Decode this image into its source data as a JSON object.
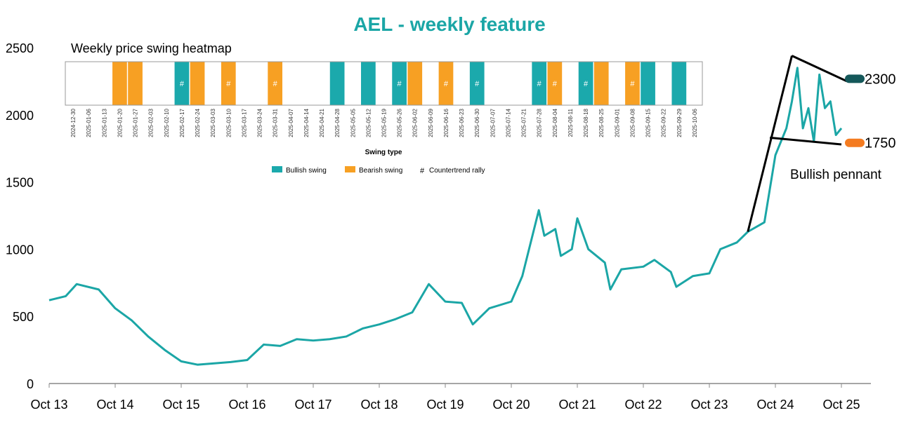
{
  "chart_data": [
    {
      "type": "line",
      "title": "AEL - weekly feature",
      "xlabel": "",
      "ylabel": "",
      "ylim": [
        0,
        2500
      ],
      "yticks": [
        0,
        500,
        1000,
        1500,
        2000,
        2500
      ],
      "xticks": [
        "Oct 13",
        "Oct 14",
        "Oct 15",
        "Oct 16",
        "Oct 17",
        "Oct 18",
        "Oct 19",
        "Oct 20",
        "Oct 21",
        "Oct 22",
        "Oct 23",
        "Oct 24",
        "Oct 25"
      ],
      "grid": false,
      "line_color": "#1ba6a6",
      "series": [
        {
          "x": [
            "2013-10",
            "2014-01",
            "2014-03",
            "2014-07",
            "2014-10",
            "2015-01",
            "2015-04",
            "2015-07",
            "2015-10",
            "2016-01",
            "2016-04",
            "2016-07",
            "2016-10",
            "2017-01",
            "2017-04",
            "2017-07",
            "2017-10",
            "2018-01",
            "2018-04",
            "2018-07",
            "2018-10",
            "2019-01",
            "2019-04",
            "2019-07",
            "2019-10",
            "2020-01",
            "2020-03",
            "2020-06",
            "2020-10",
            "2020-12",
            "2021-03",
            "2021-04",
            "2021-06",
            "2021-07",
            "2021-09",
            "2021-10",
            "2021-12",
            "2022-03",
            "2022-04",
            "2022-06",
            "2022-10",
            "2022-12",
            "2023-03",
            "2023-04",
            "2023-07",
            "2023-10",
            "2023-12",
            "2024-03",
            "2024-05",
            "2024-08",
            "2024-10",
            "2024-12",
            "2025-01",
            "2025-02",
            "2025-03",
            "2025-04",
            "2025-05",
            "2025-06",
            "2025-07",
            "2025-08",
            "2025-09",
            "2025-10"
          ],
          "values": [
            620,
            650,
            740,
            700,
            560,
            470,
            350,
            250,
            165,
            140,
            150,
            160,
            175,
            290,
            280,
            330,
            320,
            330,
            350,
            410,
            440,
            480,
            530,
            740,
            610,
            600,
            440,
            560,
            610,
            800,
            1290,
            1100,
            1150,
            950,
            1000,
            1230,
            1000,
            900,
            700,
            850,
            870,
            920,
            830,
            720,
            800,
            820,
            1000,
            1050,
            1130,
            1200,
            1700,
            1900,
            2100,
            2350,
            1900,
            2050,
            1800,
            2300,
            2050,
            2100,
            1850,
            1900
          ]
        }
      ],
      "annotations": {
        "pattern_label": "Bullish pennant",
        "lines": [
          {
            "from": [
              "2024-05",
              1130
            ],
            "to": [
              "2025-01",
              2440
            ]
          },
          {
            "from": [
              "2025-01",
              2440
            ],
            "to": [
              "2025-11",
              2250
            ]
          },
          {
            "from": [
              "2024-09",
              1830
            ],
            "to": [
              "2025-10",
              1780
            ]
          }
        ],
        "levels": [
          {
            "label": "2300",
            "value": 2300,
            "color": "#14585a"
          },
          {
            "label": "1750",
            "value": 1750,
            "color": "#f47b20"
          }
        ]
      }
    },
    {
      "type": "heatmap",
      "title": "Weekly price swing heatmap",
      "xlabel": "Swing type",
      "legend": [
        {
          "label": "Bullish swing",
          "color": "#1ba9ac"
        },
        {
          "label": "Bearish swing",
          "color": "#f7a023"
        },
        {
          "label": "Countertrend rally",
          "symbol": "#"
        }
      ],
      "weeks": [
        "2024-12-30",
        "2025-01-06",
        "2025-01-13",
        "2025-01-20",
        "2025-01-27",
        "2025-02-03",
        "2025-02-10",
        "2025-02-17",
        "2025-02-24",
        "2025-03-03",
        "2025-03-10",
        "2025-03-17",
        "2025-03-24",
        "2025-03-31",
        "2025-04-07",
        "2025-04-14",
        "2025-04-21",
        "2025-04-28",
        "2025-05-05",
        "2025-05-12",
        "2025-05-19",
        "2025-05-26",
        "2025-06-02",
        "2025-06-09",
        "2025-06-16",
        "2025-06-23",
        "2025-06-30",
        "2025-07-07",
        "2025-07-14",
        "2025-07-21",
        "2025-07-28",
        "2025-08-04",
        "2025-08-11",
        "2025-08-18",
        "2025-08-25",
        "2025-09-01",
        "2025-09-08",
        "2025-09-15",
        "2025-09-22",
        "2025-09-29",
        "2025-10-06"
      ],
      "swing": [
        "",
        "",
        "",
        "bear",
        "bear",
        "",
        "",
        "bull",
        "bear",
        "",
        "bear",
        "",
        "",
        "bear",
        "",
        "",
        "",
        "bull",
        "",
        "bull",
        "",
        "bull",
        "bear",
        "",
        "bear",
        "",
        "bull",
        "",
        "",
        "",
        "bull",
        "bear",
        "",
        "bull",
        "bear",
        "",
        "bear",
        "bull",
        "",
        "bull",
        ""
      ],
      "countertrend": [
        false,
        false,
        false,
        false,
        false,
        false,
        false,
        true,
        false,
        false,
        true,
        false,
        false,
        true,
        false,
        false,
        false,
        false,
        false,
        false,
        false,
        true,
        false,
        false,
        true,
        false,
        true,
        false,
        false,
        false,
        true,
        true,
        false,
        true,
        false,
        false,
        true,
        false,
        false,
        false,
        false
      ]
    }
  ]
}
